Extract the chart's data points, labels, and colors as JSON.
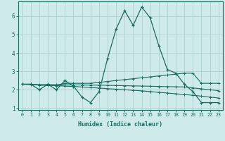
{
  "xlabel": "Humidex (Indice chaleur)",
  "ylabel": "",
  "background_color": "#ceeaea",
  "line_color": "#1a6b60",
  "grid_color": "#aed0d0",
  "x_values": [
    0,
    1,
    2,
    3,
    4,
    5,
    6,
    7,
    8,
    9,
    10,
    11,
    12,
    13,
    14,
    15,
    16,
    17,
    18,
    19,
    20,
    21,
    22,
    23
  ],
  "y_main": [
    2.3,
    2.3,
    2.0,
    2.3,
    2.0,
    2.5,
    2.2,
    1.6,
    1.3,
    1.9,
    3.7,
    5.3,
    6.3,
    5.5,
    6.5,
    5.9,
    4.4,
    3.1,
    2.9,
    2.3,
    1.9,
    1.3,
    1.3,
    1.3
  ],
  "y_line1": [
    2.3,
    2.3,
    2.25,
    2.25,
    2.25,
    2.35,
    2.35,
    2.35,
    2.35,
    2.4,
    2.45,
    2.5,
    2.55,
    2.6,
    2.65,
    2.7,
    2.75,
    2.8,
    2.85,
    2.9,
    2.9,
    2.35,
    2.35,
    2.35
  ],
  "y_line2": [
    2.3,
    2.3,
    2.28,
    2.28,
    2.27,
    2.27,
    2.26,
    2.26,
    2.25,
    2.25,
    2.24,
    2.23,
    2.22,
    2.21,
    2.2,
    2.19,
    2.18,
    2.17,
    2.16,
    2.15,
    2.1,
    2.05,
    2.0,
    1.95
  ],
  "y_line3": [
    2.3,
    2.28,
    2.26,
    2.24,
    2.22,
    2.2,
    2.18,
    2.15,
    2.12,
    2.09,
    2.06,
    2.03,
    2.0,
    1.97,
    1.94,
    1.9,
    1.86,
    1.82,
    1.78,
    1.74,
    1.7,
    1.65,
    1.6,
    1.55
  ],
  "ylim": [
    0.9,
    6.8
  ],
  "xlim": [
    -0.5,
    23.5
  ]
}
